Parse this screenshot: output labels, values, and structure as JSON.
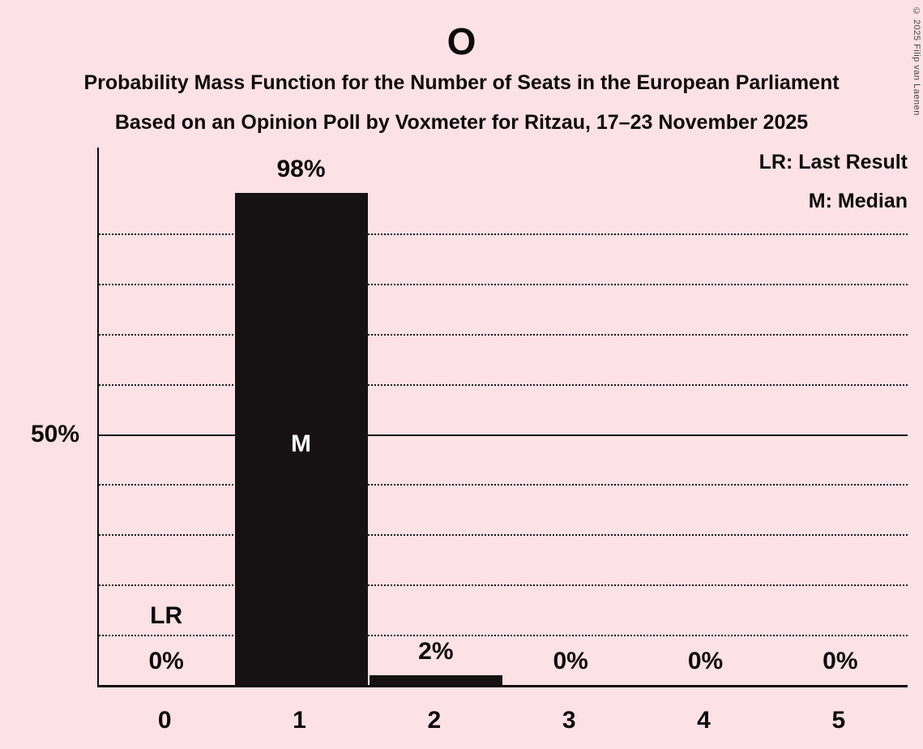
{
  "title": "O",
  "subtitle_line1": "Probability Mass Function for the Number of Seats in the European Parliament",
  "subtitle_line2": "Based on an Opinion Poll by Voxmeter for Ritzau, 17–23 November 2025",
  "legend": {
    "last_result": "LR: Last Result",
    "median": "M: Median"
  },
  "copyright": "© 2025 Filip van Laenen",
  "colors": {
    "background": "#fce1e6",
    "bar": "#161214",
    "text": "#0d0a0b",
    "median_label": "#ffffff"
  },
  "chart_data": {
    "type": "bar",
    "title": "O",
    "categories": [
      "0",
      "1",
      "2",
      "3",
      "4",
      "5"
    ],
    "values": [
      0,
      98,
      2,
      0,
      0,
      0
    ],
    "value_labels": [
      "0%",
      "98%",
      "2%",
      "0%",
      "0%",
      "0%"
    ],
    "xlabel": "",
    "ylabel": "",
    "ylim": [
      0,
      100
    ],
    "y_tick_label": "50%",
    "y_tick_value": 50,
    "gridlines_percent": [
      10,
      20,
      30,
      40,
      50,
      60,
      70,
      80,
      90
    ],
    "solid_gridline_percent": 50,
    "grid": "dotted horizontal",
    "legend_position": "top-right",
    "median_category": "1",
    "median_marker": "M",
    "last_result_category": "0",
    "last_result_marker": "LR"
  }
}
